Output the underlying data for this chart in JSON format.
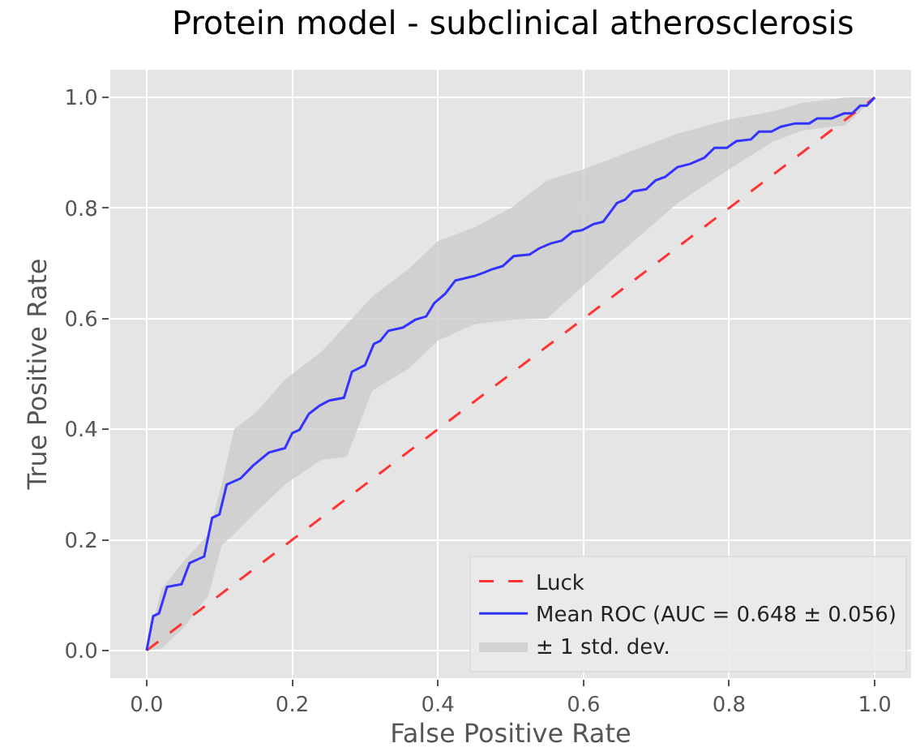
{
  "chart_data": {
    "type": "line",
    "title": "Protein model - subclinical atherosclerosis",
    "xlabel": "False Positive Rate",
    "ylabel": "True Positive Rate",
    "xlim": [
      -0.05,
      1.05
    ],
    "ylim": [
      -0.05,
      1.05
    ],
    "xticks": [
      {
        "value": 0,
        "label": "0.0"
      },
      {
        "value": 0.2,
        "label": "0.2"
      },
      {
        "value": 0.4,
        "label": "0.4"
      },
      {
        "value": 0.6,
        "label": "0.6"
      },
      {
        "value": 0.8,
        "label": "0.8"
      },
      {
        "value": 1,
        "label": "1.0"
      }
    ],
    "yticks": [
      {
        "value": 0,
        "label": "0.0"
      },
      {
        "value": 0.2,
        "label": "0.2"
      },
      {
        "value": 0.4,
        "label": "0.4"
      },
      {
        "value": 0.6,
        "label": "0.6"
      },
      {
        "value": 0.8,
        "label": "0.8"
      },
      {
        "value": 1,
        "label": "1.0"
      }
    ],
    "grid": true,
    "legend": "bottom right",
    "marker": "none",
    "series": [
      {
        "name": "Luck",
        "color": "#ff3333",
        "line_style": "dashed",
        "x": [
          0,
          1
        ],
        "values": [
          0,
          1
        ]
      },
      {
        "name": "Mean ROC (AUC = 0.648 ± 0.056)",
        "color": "#3333ff",
        "line_style": "solid",
        "x": [
          0,
          0.009,
          0.017,
          0.028,
          0.048,
          0.059,
          0.079,
          0.09,
          0.1,
          0.11,
          0.129,
          0.146,
          0.168,
          0.19,
          0.2,
          0.21,
          0.223,
          0.238,
          0.251,
          0.271,
          0.282,
          0.3,
          0.312,
          0.321,
          0.332,
          0.352,
          0.369,
          0.384,
          0.395,
          0.41,
          0.424,
          0.45,
          0.463,
          0.474,
          0.489,
          0.504,
          0.526,
          0.539,
          0.555,
          0.57,
          0.585,
          0.598,
          0.614,
          0.627,
          0.646,
          0.657,
          0.668,
          0.686,
          0.699,
          0.712,
          0.729,
          0.747,
          0.766,
          0.78,
          0.797,
          0.81,
          0.83,
          0.841,
          0.858,
          0.871,
          0.891,
          0.91,
          0.921,
          0.941,
          0.958,
          0.969,
          0.98,
          0.989,
          1
        ],
        "values": [
          0,
          0.062,
          0.067,
          0.115,
          0.12,
          0.158,
          0.17,
          0.24,
          0.246,
          0.3,
          0.311,
          0.334,
          0.358,
          0.366,
          0.393,
          0.399,
          0.428,
          0.443,
          0.452,
          0.457,
          0.504,
          0.516,
          0.554,
          0.56,
          0.578,
          0.584,
          0.598,
          0.604,
          0.628,
          0.645,
          0.669,
          0.677,
          0.683,
          0.689,
          0.695,
          0.713,
          0.716,
          0.727,
          0.736,
          0.741,
          0.757,
          0.76,
          0.771,
          0.775,
          0.809,
          0.815,
          0.83,
          0.834,
          0.85,
          0.856,
          0.874,
          0.88,
          0.891,
          0.909,
          0.909,
          0.921,
          0.924,
          0.938,
          0.938,
          0.947,
          0.953,
          0.953,
          0.962,
          0.962,
          0.971,
          0.971,
          0.985,
          0.985,
          1
        ]
      },
      {
        "name": "± 1 std. dev.",
        "type": "area",
        "color": "#cccccc",
        "x": [
          0,
          0.02,
          0.05,
          0.085,
          0.103,
          0.12,
          0.15,
          0.19,
          0.24,
          0.275,
          0.31,
          0.36,
          0.4,
          0.45,
          0.5,
          0.55,
          0.6,
          0.66,
          0.73,
          0.8,
          0.86,
          0.9,
          0.96,
          1
        ],
        "values": [
          null,
          null,
          null,
          null,
          null,
          null,
          null,
          null,
          null,
          null,
          null,
          null,
          null,
          null,
          null,
          null,
          null,
          null,
          null,
          null,
          null,
          null,
          null,
          null
        ],
        "upper": [
          0,
          0.11,
          0.16,
          0.21,
          0.3,
          0.4,
          0.43,
          0.49,
          0.54,
          0.59,
          0.64,
          0.69,
          0.74,
          0.765,
          0.8,
          0.85,
          0.87,
          0.9,
          0.935,
          0.96,
          0.975,
          0.99,
          1,
          1
        ],
        "lower": [
          0,
          0.003,
          0.04,
          0.1,
          0.19,
          0.21,
          0.25,
          0.3,
          0.345,
          0.35,
          0.47,
          0.51,
          0.56,
          0.59,
          0.598,
          0.6,
          0.66,
          0.73,
          0.81,
          0.87,
          0.92,
          0.94,
          0.95,
          1
        ]
      }
    ]
  }
}
